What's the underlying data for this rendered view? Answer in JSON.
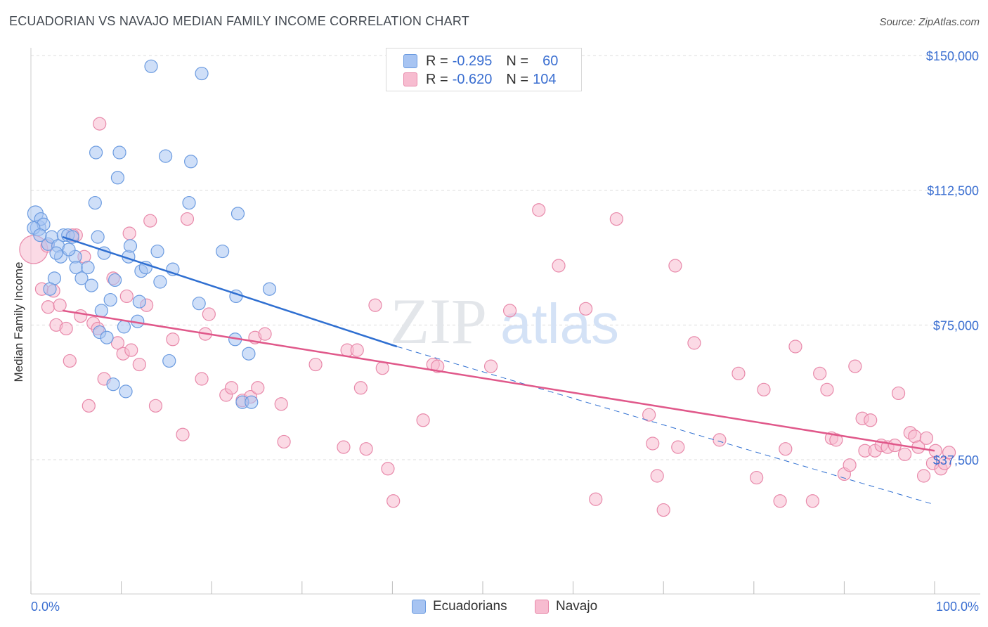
{
  "title": "ECUADORIAN VS NAVAJO MEDIAN FAMILY INCOME CORRELATION CHART",
  "source": "Source: ZipAtlas.com",
  "watermark": {
    "zip": "ZIP",
    "atlas": "atlas"
  },
  "legend": {
    "rows": [
      {
        "r_label": "R =",
        "r_value": "-0.295",
        "n_label": "N =",
        "n_value": "60",
        "color": "#a7c4f2",
        "stroke": "#6b9be0"
      },
      {
        "r_label": "R =",
        "r_value": "-0.620",
        "n_label": "N =",
        "n_value": "104",
        "color": "#f7bcd0",
        "stroke": "#e889aa"
      }
    ]
  },
  "bottom_legend": {
    "ecuadorians": "Ecuadorians",
    "navajo": "Navajo"
  },
  "colors": {
    "blue_fill": "#a7c4f2",
    "blue_stroke": "#6b9be0",
    "blue_line": "#2f6fd1",
    "pink_fill": "#f7bcd0",
    "pink_stroke": "#e889aa",
    "pink_line": "#e0588a",
    "tick_label": "#3b6fd1",
    "grid": "#dddddd"
  },
  "chart_data": {
    "type": "scatter",
    "title": "ECUADORIAN VS NAVAJO MEDIAN FAMILY INCOME CORRELATION CHART",
    "xlabel": "",
    "ylabel": "Median Family Income",
    "xlim": [
      0,
      100
    ],
    "ylim": [
      0,
      155000
    ],
    "x_tick_labels": [
      "0.0%",
      "100.0%"
    ],
    "y_ticks": [
      37500,
      75000,
      112500,
      150000
    ],
    "y_tick_labels": [
      "$37,500",
      "$75,000",
      "$112,500",
      "$150,000"
    ],
    "grid": true,
    "series": [
      {
        "name": "Ecuadorians",
        "points": [
          [
            0.5,
            106000
          ],
          [
            0.8,
            102000
          ],
          [
            1.1,
            104500
          ],
          [
            1.4,
            103000
          ],
          [
            1.9,
            97500
          ],
          [
            2.3,
            99500
          ],
          [
            2.6,
            88000
          ],
          [
            2.1,
            85000
          ],
          [
            3.0,
            97000
          ],
          [
            3.3,
            94000
          ],
          [
            3.6,
            100000
          ],
          [
            4.1,
            100000
          ],
          [
            4.6,
            99500
          ],
          [
            4.9,
            94000
          ],
          [
            5.0,
            91000
          ],
          [
            5.6,
            88000
          ],
          [
            6.3,
            91000
          ],
          [
            6.7,
            86000
          ],
          [
            7.1,
            109000
          ],
          [
            7.4,
            99500
          ],
          [
            7.6,
            73000
          ],
          [
            7.8,
            79000
          ],
          [
            8.1,
            95000
          ],
          [
            8.4,
            71500
          ],
          [
            8.8,
            82000
          ],
          [
            9.1,
            58500
          ],
          [
            9.3,
            87500
          ],
          [
            9.6,
            116000
          ],
          [
            9.8,
            123000
          ],
          [
            10.3,
            74500
          ],
          [
            10.5,
            56500
          ],
          [
            10.8,
            94000
          ],
          [
            11.0,
            97000
          ],
          [
            11.8,
            76000
          ],
          [
            12.0,
            81500
          ],
          [
            12.2,
            90000
          ],
          [
            12.7,
            91000
          ],
          [
            13.3,
            147000
          ],
          [
            14.0,
            95500
          ],
          [
            14.3,
            87000
          ],
          [
            14.9,
            122000
          ],
          [
            15.3,
            65000
          ],
          [
            15.7,
            90500
          ],
          [
            17.5,
            109000
          ],
          [
            17.7,
            120500
          ],
          [
            18.6,
            81000
          ],
          [
            18.9,
            145000
          ],
          [
            21.2,
            95500
          ],
          [
            22.6,
            71000
          ],
          [
            22.7,
            83000
          ],
          [
            22.9,
            106000
          ],
          [
            23.4,
            53500
          ],
          [
            24.1,
            67000
          ],
          [
            24.4,
            53500
          ],
          [
            26.4,
            85000
          ],
          [
            7.2,
            123000
          ],
          [
            0.3,
            102000
          ],
          [
            1.0,
            100000
          ],
          [
            2.8,
            95000
          ],
          [
            4.2,
            96000
          ]
        ]
      },
      {
        "name": "Navajo",
        "points": [
          [
            0.3,
            96000
          ],
          [
            1.2,
            85000
          ],
          [
            1.9,
            80000
          ],
          [
            2.5,
            84500
          ],
          [
            2.8,
            75000
          ],
          [
            3.2,
            80500
          ],
          [
            3.9,
            74000
          ],
          [
            4.3,
            65000
          ],
          [
            5.0,
            100000
          ],
          [
            5.5,
            77500
          ],
          [
            5.9,
            94000
          ],
          [
            6.4,
            52500
          ],
          [
            6.9,
            75500
          ],
          [
            7.4,
            74000
          ],
          [
            7.6,
            131000
          ],
          [
            8.1,
            60000
          ],
          [
            9.1,
            88000
          ],
          [
            9.6,
            70000
          ],
          [
            10.2,
            67000
          ],
          [
            10.6,
            83000
          ],
          [
            10.9,
            100500
          ],
          [
            11.1,
            68000
          ],
          [
            12.0,
            64000
          ],
          [
            12.8,
            80500
          ],
          [
            13.2,
            104000
          ],
          [
            13.8,
            52500
          ],
          [
            15.7,
            71000
          ],
          [
            16.8,
            44500
          ],
          [
            17.3,
            104500
          ],
          [
            18.9,
            60000
          ],
          [
            19.3,
            72500
          ],
          [
            19.7,
            78000
          ],
          [
            21.6,
            55500
          ],
          [
            22.2,
            57500
          ],
          [
            23.4,
            54000
          ],
          [
            24.3,
            55000
          ],
          [
            24.8,
            71500
          ],
          [
            25.1,
            57500
          ],
          [
            25.9,
            72500
          ],
          [
            27.7,
            53000
          ],
          [
            28.0,
            42500
          ],
          [
            31.5,
            64000
          ],
          [
            34.6,
            41000
          ],
          [
            35.0,
            68000
          ],
          [
            36.1,
            68000
          ],
          [
            36.5,
            57500
          ],
          [
            37.1,
            40500
          ],
          [
            38.1,
            80500
          ],
          [
            38.9,
            63000
          ],
          [
            39.5,
            35000
          ],
          [
            40.1,
            26000
          ],
          [
            43.4,
            48500
          ],
          [
            44.5,
            64000
          ],
          [
            45.0,
            63500
          ],
          [
            50.9,
            63500
          ],
          [
            53.0,
            79000
          ],
          [
            56.2,
            107000
          ],
          [
            58.4,
            91500
          ],
          [
            61.4,
            79500
          ],
          [
            62.5,
            26500
          ],
          [
            64.8,
            104500
          ],
          [
            68.4,
            50000
          ],
          [
            68.8,
            42000
          ],
          [
            69.3,
            33000
          ],
          [
            70.0,
            23500
          ],
          [
            71.3,
            91500
          ],
          [
            71.6,
            41000
          ],
          [
            73.4,
            70000
          ],
          [
            76.2,
            43000
          ],
          [
            78.3,
            61500
          ],
          [
            80.3,
            32500
          ],
          [
            81.1,
            57000
          ],
          [
            82.9,
            26000
          ],
          [
            83.5,
            40500
          ],
          [
            84.6,
            69000
          ],
          [
            86.5,
            26000
          ],
          [
            87.3,
            61500
          ],
          [
            88.1,
            57000
          ],
          [
            88.6,
            43500
          ],
          [
            89.1,
            43000
          ],
          [
            90.0,
            33500
          ],
          [
            90.6,
            36000
          ],
          [
            91.2,
            63500
          ],
          [
            92.3,
            40000
          ],
          [
            92.0,
            49000
          ],
          [
            92.9,
            48500
          ],
          [
            93.4,
            40000
          ],
          [
            94.1,
            41500
          ],
          [
            94.8,
            41000
          ],
          [
            95.6,
            41500
          ],
          [
            96.0,
            56000
          ],
          [
            96.7,
            39000
          ],
          [
            97.3,
            45000
          ],
          [
            97.8,
            44000
          ],
          [
            98.2,
            41000
          ],
          [
            98.8,
            33000
          ],
          [
            99.1,
            43500
          ],
          [
            99.8,
            36500
          ],
          [
            100.1,
            40000
          ],
          [
            100.7,
            35000
          ],
          [
            101.1,
            36500
          ],
          [
            101.6,
            39500
          ],
          [
            1.8,
            97000
          ],
          [
            4.6,
            100000
          ]
        ]
      }
    ],
    "trend_lines": [
      {
        "series": "Ecuadorians",
        "x": [
          3.5,
          40.5
        ],
        "y": [
          99500,
          69000
        ],
        "style": "solid"
      },
      {
        "series": "Ecuadorians",
        "x": [
          40.5,
          100
        ],
        "y": [
          69000,
          25000
        ],
        "style": "dashed"
      },
      {
        "series": "Navajo",
        "x": [
          3.5,
          100
        ],
        "y": [
          79000,
          40000
        ],
        "style": "solid"
      }
    ]
  }
}
